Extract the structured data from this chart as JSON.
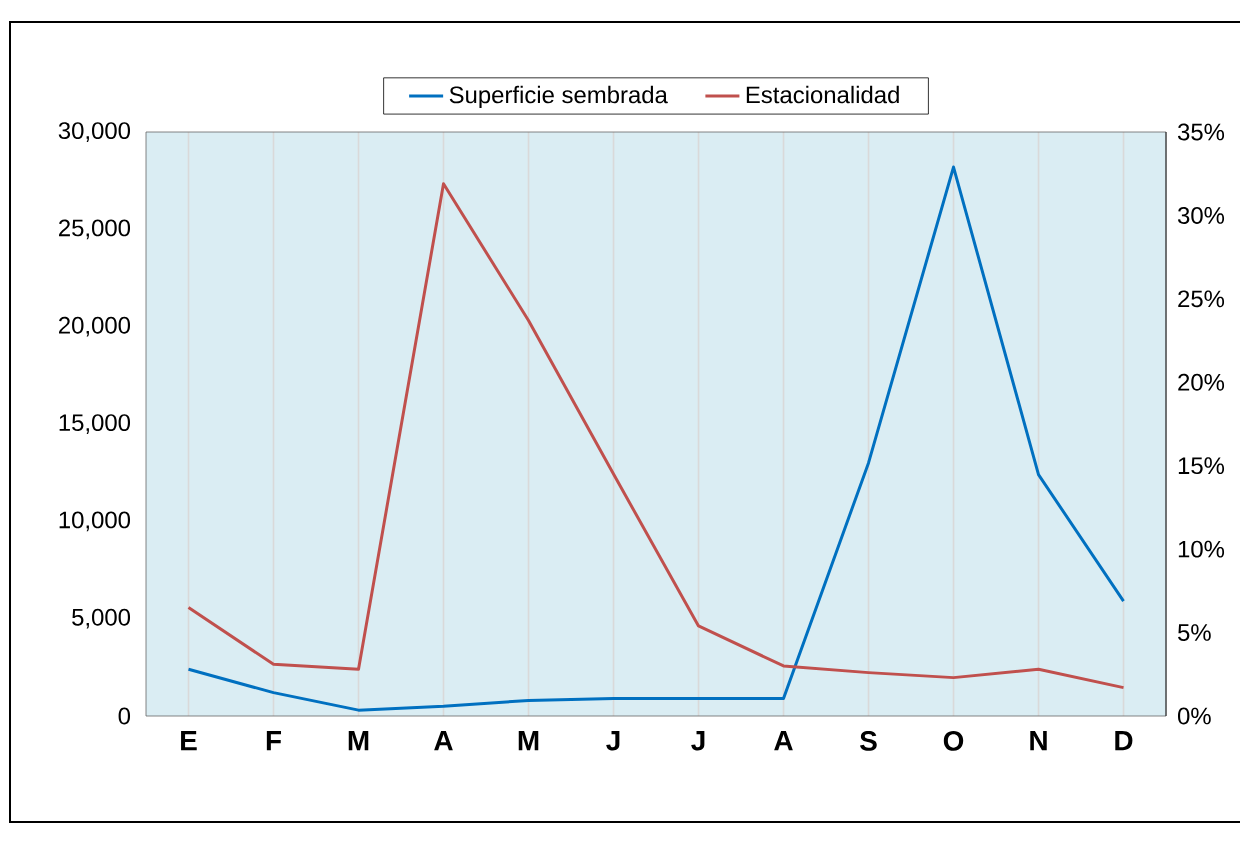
{
  "chart_data": {
    "type": "line",
    "categories": [
      "E",
      "F",
      "M",
      "A",
      "M",
      "J",
      "J",
      "A",
      "S",
      "O",
      "N",
      "D"
    ],
    "series": [
      {
        "name": "Superficie sembrada",
        "color": "#0070c0",
        "values": [
          2400,
          1200,
          300,
          500,
          800,
          900,
          900,
          900,
          13000,
          28200,
          12400,
          5900
        ]
      },
      {
        "name": "Estacionalidad",
        "color": "#c0504d",
        "axis": "y2",
        "values": [
          6.5,
          3.1,
          2.8,
          31.9,
          23.7,
          14.5,
          5.4,
          3.0,
          2.6,
          2.3,
          2.8,
          1.7
        ]
      }
    ],
    "ylim": [
      0,
      30000
    ],
    "yticks": [
      {
        "value": 0,
        "label": "0"
      },
      {
        "value": 5000,
        "label": "5,000"
      },
      {
        "value": 10000,
        "label": "10,000"
      },
      {
        "value": 15000,
        "label": "15,000"
      },
      {
        "value": 20000,
        "label": "20,000"
      },
      {
        "value": 25000,
        "label": "25,000"
      },
      {
        "value": 30000,
        "label": "30,000"
      }
    ],
    "y2lim": [
      0,
      35
    ],
    "y2ticks": [
      {
        "value": 0,
        "label": "0%"
      },
      {
        "value": 5,
        "label": "5%"
      },
      {
        "value": 10,
        "label": "10%"
      },
      {
        "value": 15,
        "label": "15%"
      },
      {
        "value": 20,
        "label": "20%"
      },
      {
        "value": 25,
        "label": "25%"
      },
      {
        "value": 30,
        "label": "30%"
      },
      {
        "value": 35,
        "label": "35%"
      }
    ],
    "grid": "x",
    "legend": "top",
    "marker": "none",
    "line_style": "solid"
  }
}
